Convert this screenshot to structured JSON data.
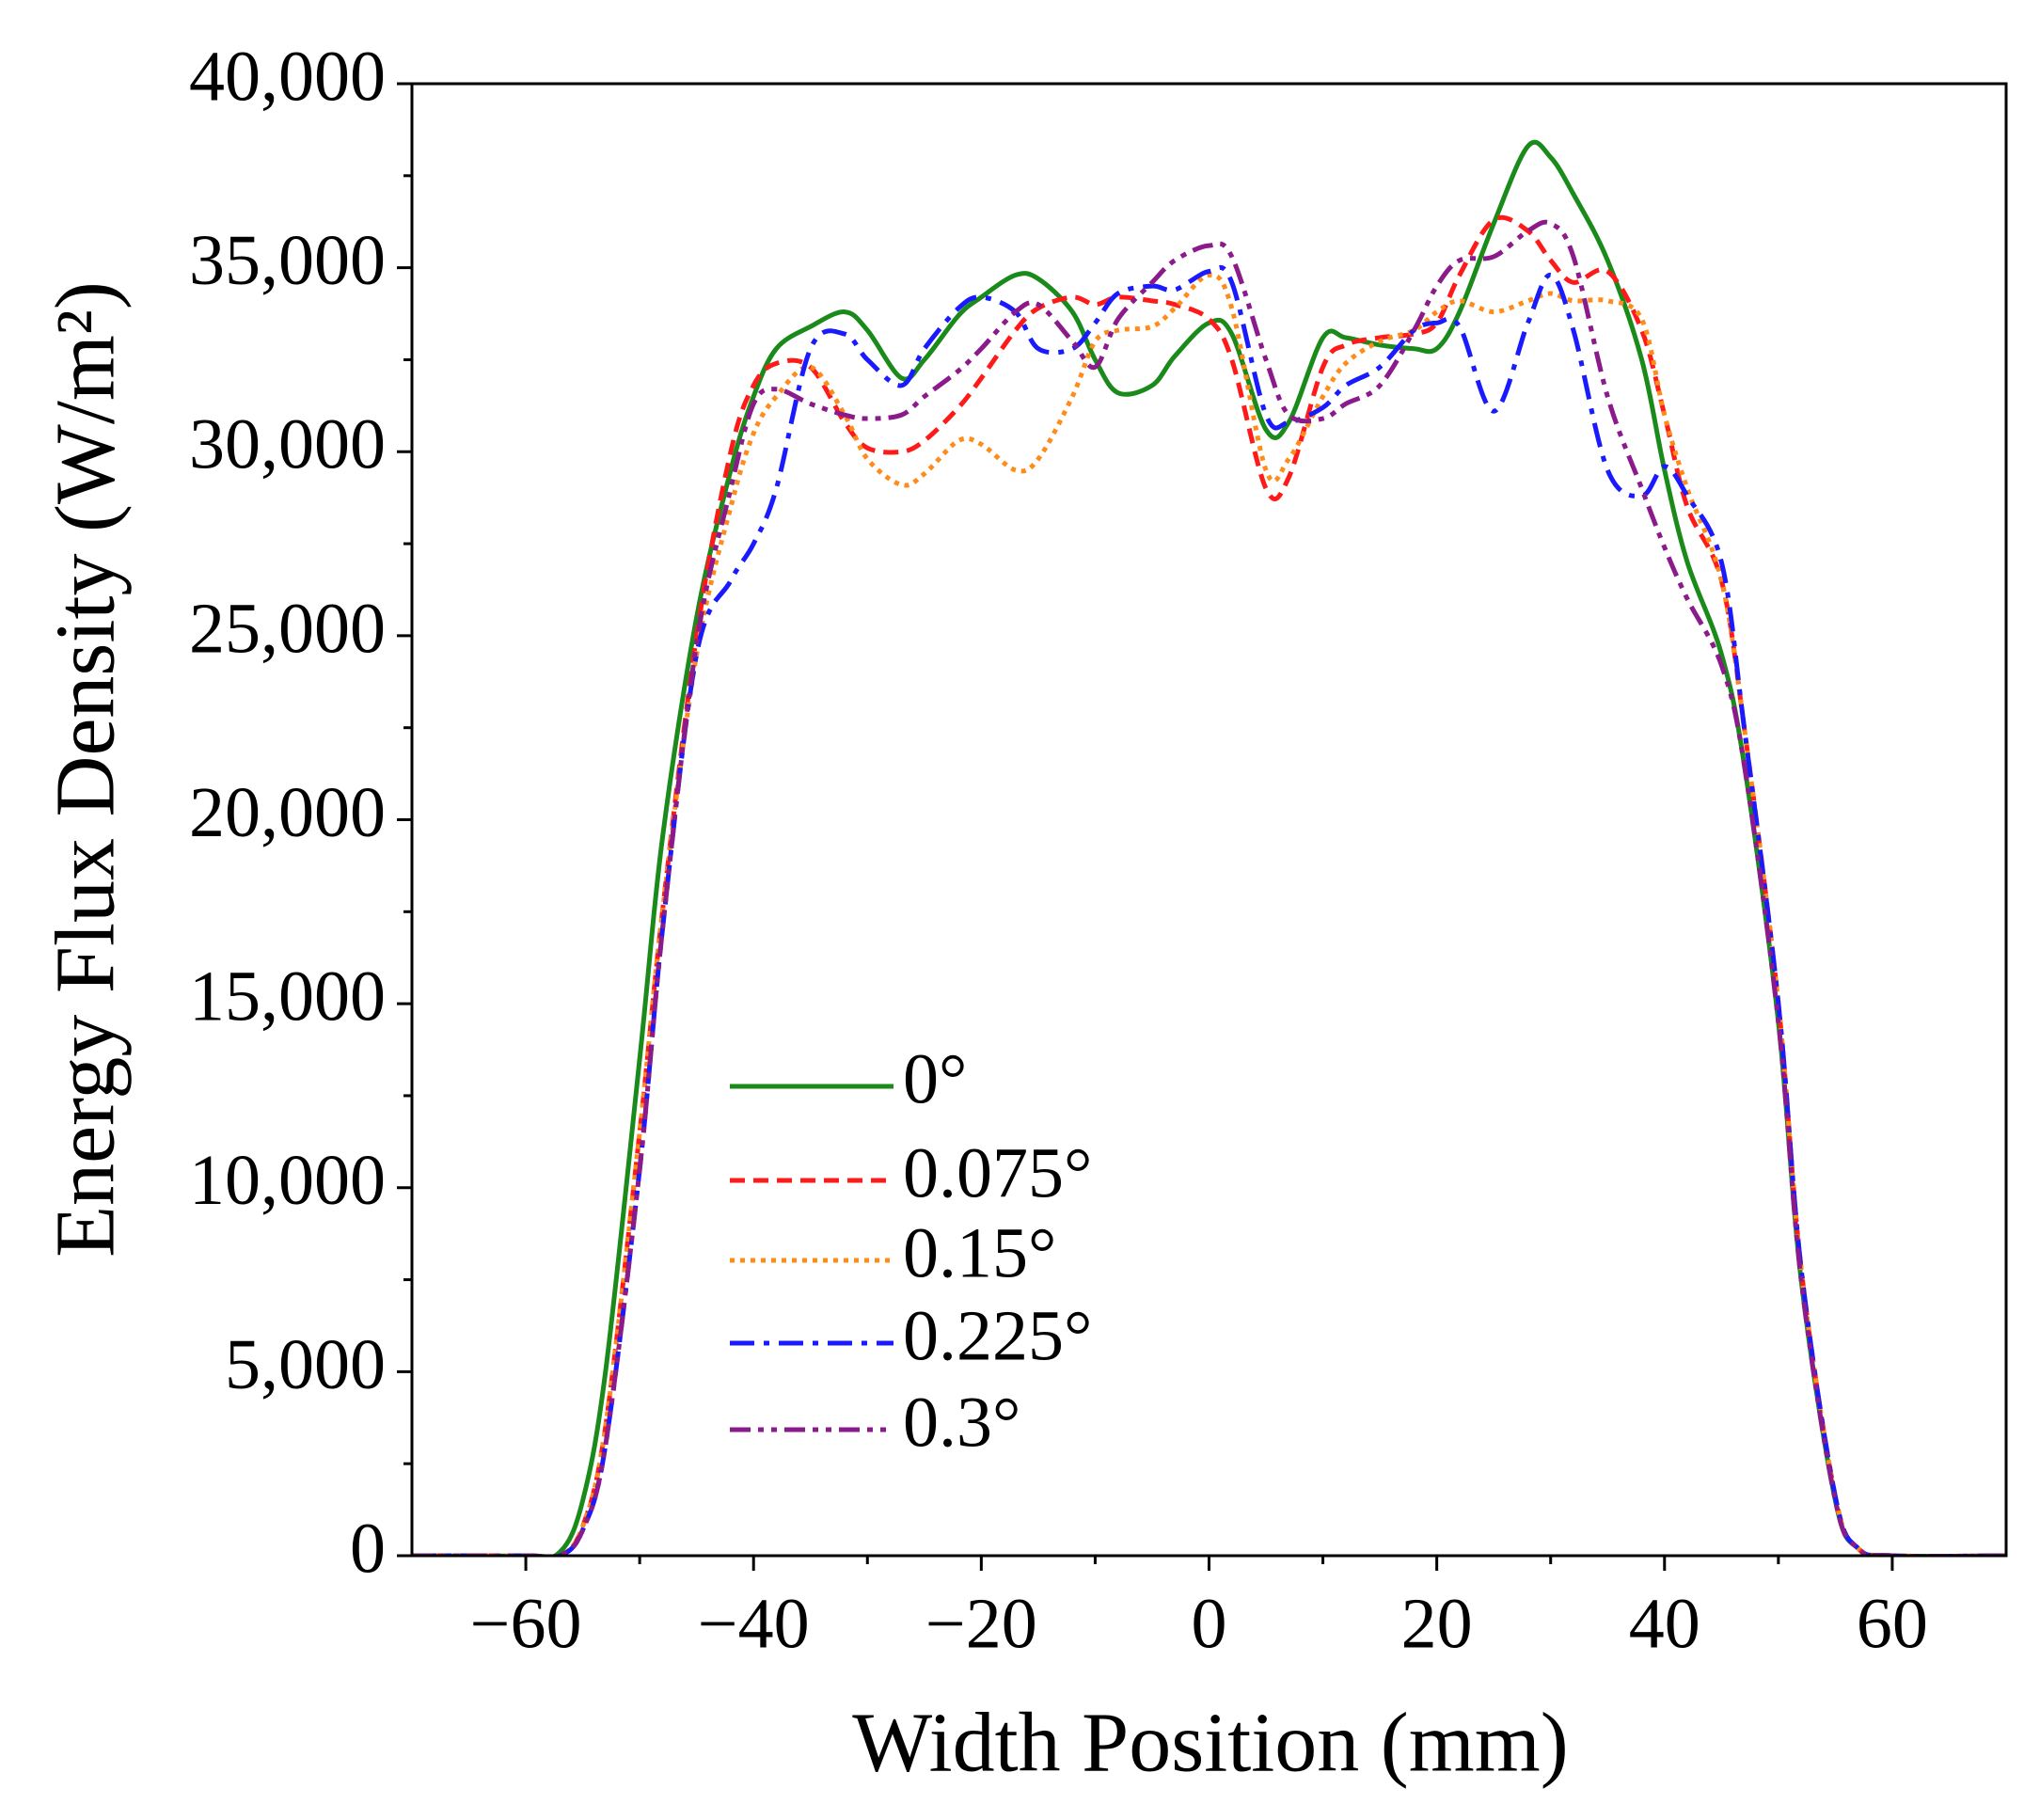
{
  "chart_data": {
    "type": "line",
    "xlabel": "Width Position (mm)",
    "ylabel": "Energy Flux Density (W/m²)",
    "x": [
      -70,
      -60,
      -57,
      -55,
      -53,
      -50,
      -48,
      -45,
      -42,
      -40,
      -38,
      -35,
      -32,
      -30,
      -27,
      -25,
      -22,
      -20,
      -17,
      -15,
      -12,
      -10,
      -8,
      -5,
      -3,
      0,
      2,
      5,
      7,
      10,
      12,
      15,
      18,
      20,
      22,
      25,
      28,
      30,
      32,
      35,
      38,
      40,
      42,
      45,
      47,
      50,
      52,
      55,
      57,
      60,
      70
    ],
    "series": [
      {
        "name": "0°",
        "color": "#1a8a1a",
        "style": "solid",
        "values": [
          0,
          0,
          100,
          1500,
          5000,
          13500,
          19500,
          25500,
          29500,
          31500,
          32800,
          33400,
          33800,
          33300,
          32000,
          32500,
          33700,
          34200,
          34800,
          34700,
          33800,
          32500,
          31600,
          31800,
          32600,
          33500,
          33200,
          30600,
          30800,
          33100,
          33100,
          32900,
          32800,
          32800,
          33800,
          36200,
          38300,
          38000,
          37000,
          35200,
          32500,
          29500,
          27000,
          24500,
          21500,
          14500,
          7500,
          1500,
          200,
          0,
          0
        ]
      },
      {
        "name": "0.075°",
        "color": "#ff1a1a",
        "style": "dashed",
        "values": [
          0,
          0,
          0,
          800,
          3500,
          11500,
          17500,
          25000,
          30000,
          31800,
          32400,
          32300,
          30800,
          30100,
          30000,
          30300,
          31200,
          32000,
          33300,
          33900,
          34200,
          34000,
          34200,
          34100,
          34000,
          33600,
          32500,
          29000,
          29300,
          32300,
          32900,
          33100,
          33200,
          33500,
          34800,
          36300,
          36000,
          35200,
          34600,
          34900,
          33300,
          31000,
          28500,
          26500,
          22500,
          15000,
          7800,
          1600,
          200,
          0,
          0
        ]
      },
      {
        "name": "0.15°",
        "color": "#ff8c1a",
        "style": "dotted",
        "values": [
          0,
          0,
          0,
          800,
          3500,
          11500,
          17500,
          24500,
          28500,
          30500,
          31500,
          32300,
          31000,
          29800,
          29100,
          29400,
          30300,
          30200,
          29500,
          29800,
          31500,
          33000,
          33300,
          33400,
          33900,
          34800,
          33900,
          29500,
          29800,
          31500,
          32400,
          33000,
          33300,
          33800,
          34100,
          33800,
          34100,
          34300,
          34100,
          34100,
          33600,
          31000,
          29000,
          26500,
          22500,
          15000,
          7800,
          1600,
          200,
          0,
          0
        ]
      },
      {
        "name": "0.225°",
        "color": "#1a1aff",
        "style": "dashdot",
        "values": [
          0,
          0,
          0,
          700,
          3000,
          10500,
          17000,
          24500,
          26500,
          27500,
          29000,
          32800,
          33200,
          32500,
          31800,
          32800,
          33900,
          34200,
          33800,
          32800,
          32800,
          33500,
          34300,
          34500,
          34400,
          34900,
          34600,
          31000,
          30800,
          31200,
          31800,
          32300,
          33300,
          33500,
          33400,
          31100,
          33500,
          34800,
          33300,
          29500,
          28800,
          29600,
          28800,
          27000,
          22500,
          15000,
          7800,
          1600,
          200,
          0,
          0
        ]
      },
      {
        "name": "0.3°",
        "color": "#8b1a8b",
        "style": "dashdotdot",
        "values": [
          0,
          0,
          0,
          700,
          3000,
          10500,
          17000,
          24800,
          29000,
          31300,
          31700,
          31300,
          31000,
          30900,
          31000,
          31500,
          32200,
          32800,
          33800,
          34000,
          33000,
          32300,
          33600,
          34600,
          35200,
          35600,
          35300,
          32500,
          31000,
          30900,
          31300,
          31800,
          33300,
          34500,
          35200,
          35300,
          36000,
          36200,
          35300,
          31500,
          29000,
          27400,
          26000,
          24200,
          21500,
          14500,
          7500,
          1500,
          200,
          0,
          0
        ]
      }
    ],
    "xlim": [
      -70,
      70
    ],
    "xticks": [
      {
        "value": -60,
        "label": "−60"
      },
      {
        "value": -40,
        "label": "−40"
      },
      {
        "value": -20,
        "label": "−20"
      },
      0,
      20,
      40,
      60
    ],
    "ylim": [
      0,
      40000
    ],
    "yticks": [
      0,
      {
        "value": 5000,
        "label": "5,000"
      },
      {
        "value": 10000,
        "label": "10,000"
      },
      {
        "value": 15000,
        "label": "15,000"
      },
      {
        "value": 20000,
        "label": "20,000"
      },
      {
        "value": 25000,
        "label": "25,000"
      },
      {
        "value": 30000,
        "label": "30,000"
      },
      {
        "value": 35000,
        "label": "35,000"
      },
      {
        "value": 40000,
        "label": "40,000"
      }
    ],
    "grid": false,
    "legend": "lower left"
  }
}
